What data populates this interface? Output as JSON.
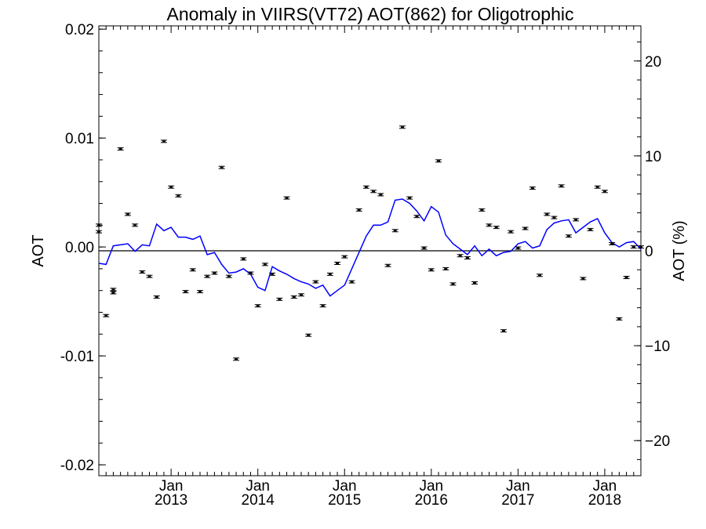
{
  "chart_data": {
    "type": "scatter",
    "title": "Anomaly in VIIRS(VT72) AOT(862) for Oligotrophic",
    "ylabel": "AOT",
    "ylabel_right": "AOT (%)",
    "xlabel": "",
    "ylim": [
      -0.021,
      0.0203
    ],
    "y2lim": [
      -23.7,
      23.7
    ],
    "y_ticks": [
      {
        "value": 0.02,
        "label": "0.02"
      },
      {
        "value": 0.01,
        "label": "0.01"
      },
      {
        "value": 0.0,
        "label": "0.00"
      },
      {
        "value": -0.01,
        "label": "-0.01"
      },
      {
        "value": -0.02,
        "label": "-0.02"
      }
    ],
    "y2_ticks": [
      {
        "value": 20,
        "label": "20"
      },
      {
        "value": 10,
        "label": "10"
      },
      {
        "value": 0,
        "label": "0"
      },
      {
        "value": -10,
        "label": "−10"
      },
      {
        "value": -20,
        "label": "−20"
      }
    ],
    "x_ticks": [
      {
        "value": "2013-01",
        "label_top": "Jan",
        "label_bottom": "2013"
      },
      {
        "value": "2014-01",
        "label_top": "Jan",
        "label_bottom": "2014"
      },
      {
        "value": "2015-01",
        "label_top": "Jan",
        "label_bottom": "2015"
      },
      {
        "value": "2016-01",
        "label_top": "Jan",
        "label_bottom": "2016"
      },
      {
        "value": "2017-01",
        "label_top": "Jan",
        "label_bottom": "2017"
      },
      {
        "value": "2018-01",
        "label_top": "Jan",
        "label_bottom": "2018"
      }
    ],
    "xlim": [
      "2012-03-01",
      "2018-06-01"
    ],
    "zero_line": 0.0,
    "grid": false,
    "colors": {
      "points": "#000000",
      "line": "#0000ff"
    },
    "series": [
      {
        "type": "errorbar-points",
        "x": [
          "2012-03",
          "2012-03",
          "2012-04",
          "2012-05",
          "2012-05",
          "2012-06",
          "2012-07",
          "2012-08",
          "2012-09",
          "2012-10",
          "2012-11",
          "2012-12",
          "2013-01",
          "2013-02",
          "2013-03",
          "2013-04",
          "2013-05",
          "2013-06",
          "2013-07",
          "2013-08",
          "2013-09",
          "2013-10",
          "2013-11",
          "2013-12",
          "2014-01",
          "2014-02",
          "2014-03",
          "2014-04",
          "2014-05",
          "2014-06",
          "2014-07",
          "2014-08",
          "2014-09",
          "2014-10",
          "2014-11",
          "2014-12",
          "2015-01",
          "2015-02",
          "2015-03",
          "2015-04",
          "2015-05",
          "2015-06",
          "2015-07",
          "2015-08",
          "2015-09",
          "2015-10",
          "2015-11",
          "2015-12",
          "2016-01",
          "2016-02",
          "2016-03",
          "2016-04",
          "2016-05",
          "2016-06",
          "2016-07",
          "2016-08",
          "2016-09",
          "2016-10",
          "2016-11",
          "2016-12",
          "2017-01",
          "2017-02",
          "2017-03",
          "2017-04",
          "2017-05",
          "2017-06",
          "2017-07",
          "2017-08",
          "2017-09",
          "2017-10",
          "2017-11",
          "2017-12",
          "2018-01",
          "2018-02",
          "2018-03",
          "2018-04",
          "2018-05",
          "2018-06"
        ],
        "y": [
          0.0014,
          0.002,
          -0.0063,
          -0.0039,
          -0.0042,
          0.009,
          0.003,
          0.002,
          -0.0023,
          -0.0027,
          -0.0046,
          0.0097,
          0.0055,
          0.0047,
          -0.0041,
          -0.0021,
          -0.0041,
          -0.0027,
          -0.0024,
          0.0073,
          -0.0027,
          -0.0103,
          -0.0011,
          -0.0024,
          -0.0054,
          -0.0016,
          -0.0025,
          -0.0048,
          0.0045,
          -0.0046,
          -0.0044,
          -0.0081,
          -0.0032,
          -0.0054,
          -0.0025,
          -0.0015,
          -0.0009,
          -0.0032,
          0.0034,
          0.0055,
          0.0051,
          0.0048,
          -0.0017,
          0.0015,
          0.011,
          0.0045,
          0.0028,
          -0.0001,
          -0.0021,
          0.0079,
          -0.002,
          -0.0034,
          -0.0008,
          -0.001,
          -0.0033,
          0.0034,
          0.002,
          0.0018,
          -0.0077,
          0.0014,
          -0.0001,
          0.0017,
          0.0054,
          -0.0026,
          0.003,
          0.0027,
          0.0056,
          0.001,
          0.0025,
          -0.0029,
          0.0016,
          0.0055,
          0.0051,
          0.0003,
          -0.0066,
          -0.0028,
          0.0,
          0.0
        ]
      },
      {
        "type": "line",
        "x": [
          "2012-03",
          "2012-04",
          "2012-05",
          "2012-06",
          "2012-07",
          "2012-08",
          "2012-09",
          "2012-10",
          "2012-11",
          "2012-12",
          "2013-01",
          "2013-02",
          "2013-03",
          "2013-04",
          "2013-05",
          "2013-06",
          "2013-07",
          "2013-08",
          "2013-09",
          "2013-10",
          "2013-11",
          "2013-12",
          "2014-01",
          "2014-02",
          "2014-03",
          "2014-04",
          "2014-05",
          "2014-06",
          "2014-07",
          "2014-08",
          "2014-09",
          "2014-10",
          "2014-11",
          "2014-12",
          "2015-01",
          "2015-02",
          "2015-03",
          "2015-04",
          "2015-05",
          "2015-06",
          "2015-07",
          "2015-08",
          "2015-09",
          "2015-10",
          "2015-11",
          "2015-12",
          "2016-01",
          "2016-02",
          "2016-03",
          "2016-04",
          "2016-05",
          "2016-06",
          "2016-07",
          "2016-08",
          "2016-09",
          "2016-10",
          "2016-11",
          "2016-12",
          "2017-01",
          "2017-02",
          "2017-03",
          "2017-04",
          "2017-05",
          "2017-06",
          "2017-07",
          "2017-08",
          "2017-09",
          "2017-10",
          "2017-11",
          "2017-12",
          "2018-01",
          "2018-02",
          "2018-03",
          "2018-04",
          "2018-05",
          "2018-06"
        ],
        "y": [
          -0.0015,
          -0.0016,
          0.0001,
          0.0002,
          0.0003,
          -0.0004,
          0.0002,
          0.0001,
          0.0021,
          0.0015,
          0.0018,
          0.0009,
          0.0009,
          0.0007,
          0.001,
          -0.0007,
          -0.0005,
          -0.0016,
          -0.0024,
          -0.0023,
          -0.002,
          -0.0025,
          -0.0037,
          -0.004,
          -0.0018,
          -0.0022,
          -0.0025,
          -0.0029,
          -0.0032,
          -0.0034,
          -0.0038,
          -0.0035,
          -0.0045,
          -0.004,
          -0.0035,
          -0.002,
          -0.0005,
          0.001,
          0.002,
          0.002,
          0.0023,
          0.0043,
          0.0044,
          0.004,
          0.0033,
          0.0024,
          0.0037,
          0.0032,
          0.0011,
          0.0003,
          -0.0002,
          -0.0007,
          0.0001,
          -0.0008,
          -0.0002,
          -0.0008,
          -0.0005,
          -0.0004,
          0.0003,
          0.0005,
          -0.0001,
          0.0001,
          0.0016,
          0.0022,
          0.0024,
          0.0025,
          0.0013,
          0.0018,
          0.0023,
          0.0026,
          0.0013,
          0.0004,
          0.0,
          0.0004,
          0.0005,
          -0.0002
        ]
      }
    ]
  }
}
